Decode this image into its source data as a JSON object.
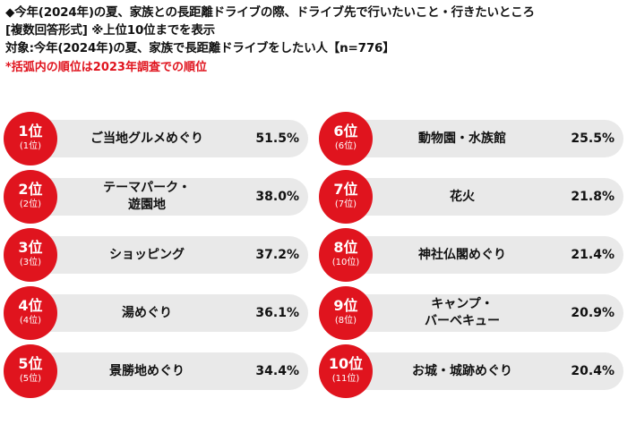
{
  "header": {
    "title": "◆今年(2024年)の夏、家族との長距離ドライブの際、ドライブ先で行いたいこと・行きたいところ",
    "format": "[複数回答形式]  ※上位10位までを表示",
    "target": "対象:今年(2024年)の夏、家族で長距離ドライブをしたい人【n=776】",
    "note": "*括弧内の順位は2023年調査での順位"
  },
  "accent_color": "#e0141e",
  "left": [
    {
      "rank": "1位",
      "prev": "(1位)",
      "item": "ご当地グルメめぐり",
      "pct": "51.5%"
    },
    {
      "rank": "2位",
      "prev": "(2位)",
      "item": "テーマパーク・\n遊園地",
      "pct": "38.0%"
    },
    {
      "rank": "3位",
      "prev": "(3位)",
      "item": "ショッピング",
      "pct": "37.2%"
    },
    {
      "rank": "4位",
      "prev": "(4位)",
      "item": "湯めぐり",
      "pct": "36.1%"
    },
    {
      "rank": "5位",
      "prev": "(5位)",
      "item": "景勝地めぐり",
      "pct": "34.4%"
    }
  ],
  "right": [
    {
      "rank": "6位",
      "prev": "(6位)",
      "item": "動物園・水族館",
      "pct": "25.5%"
    },
    {
      "rank": "7位",
      "prev": "(7位)",
      "item": "花火",
      "pct": "21.8%"
    },
    {
      "rank": "8位",
      "prev": "(10位)",
      "item": "神社仏閣めぐり",
      "pct": "21.4%"
    },
    {
      "rank": "9位",
      "prev": "(8位)",
      "item": "キャンプ・\nバーベキュー",
      "pct": "20.9%"
    },
    {
      "rank": "10位",
      "prev": "(11位)",
      "item": "お城・城跡めぐり",
      "pct": "20.4%"
    }
  ]
}
